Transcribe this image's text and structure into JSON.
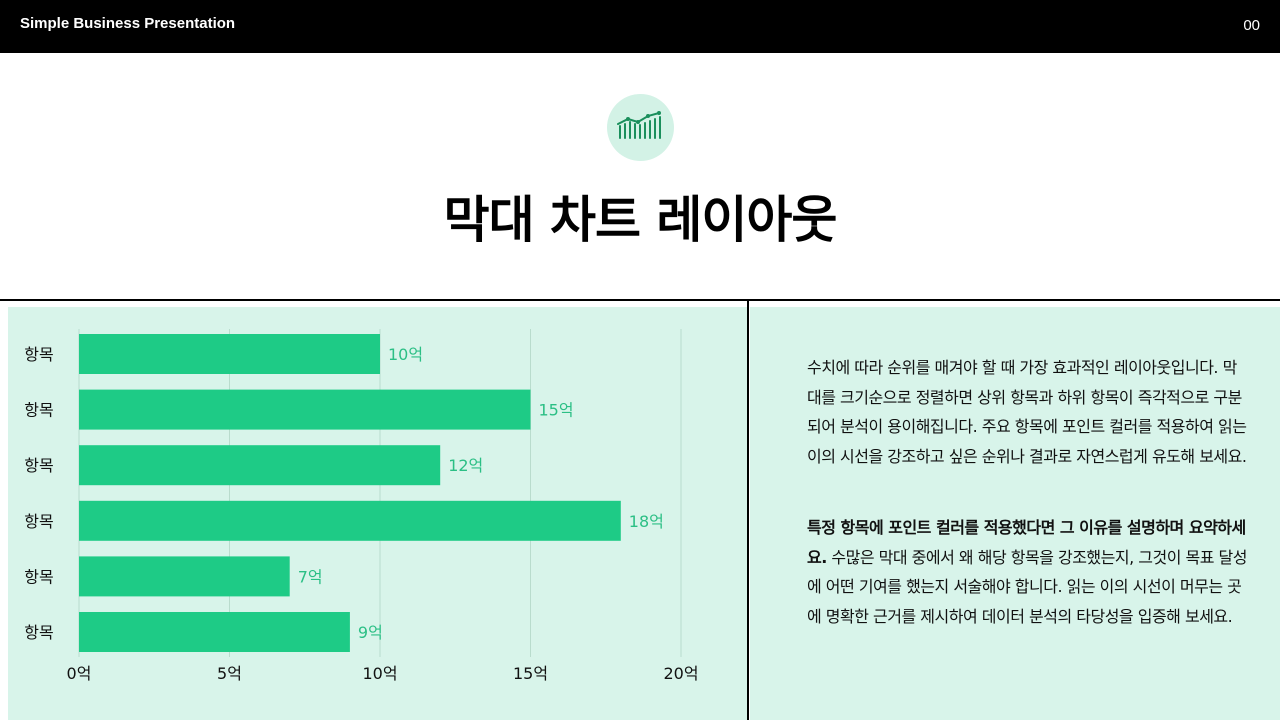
{
  "header": {
    "title": "Simple Business Presentation",
    "page_number": "00"
  },
  "hero": {
    "icon": "bar-chart-trend-icon",
    "title": "막대 차트 레이아웃"
  },
  "colors": {
    "bar": "#1ecb86",
    "value_label": "#2bbf85",
    "panel_bg": "#d8f4ea",
    "icon_bg": "#d3f2e6"
  },
  "chart_data": {
    "type": "bar",
    "orientation": "horizontal",
    "categories": [
      "항목",
      "항목",
      "항목",
      "항목",
      "항목",
      "항목"
    ],
    "values": [
      10,
      15,
      12,
      18,
      7,
      9
    ],
    "value_labels": [
      "10억",
      "15억",
      "12억",
      "18억",
      "7억",
      "9억"
    ],
    "xlim": [
      0,
      20
    ],
    "x_ticks": [
      0,
      5,
      10,
      15,
      20
    ],
    "x_tick_labels": [
      "0억",
      "5억",
      "10억",
      "15억",
      "20억"
    ],
    "grid": true
  },
  "description": {
    "paragraph1": "수치에 따라 순위를 매겨야 할 때 가장 효과적인 레이아웃입니다. 막대를 크기순으로 정렬하면 상위 항목과 하위 항목이 즉각적으로 구분되어 분석이 용이해집니다. 주요 항목에 포인트 컬러를 적용하여 읽는 이의 시선을 강조하고 싶은 순위나 결과로 자연스럽게 유도해 보세요.",
    "paragraph2_lead": "특정 항목에 포인트 컬러를 적용했다면 그 이유를 설명하며 요약하세요.",
    "paragraph2_body": " 수많은 막대 중에서 왜 해당 항목을 강조했는지, 그것이 목표 달성에 어떤 기여를 했는지 서술해야 합니다. 읽는 이의 시선이 머무는 곳에 명확한 근거를 제시하여 데이터 분석의 타당성을 입증해 보세요."
  }
}
